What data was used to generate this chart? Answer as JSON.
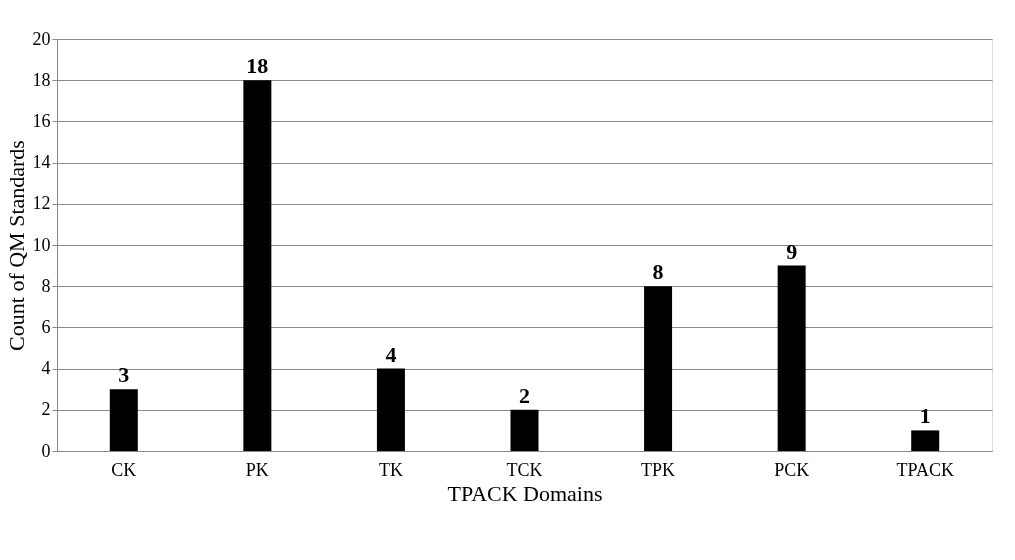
{
  "chart_data": {
    "type": "bar",
    "xlabel": "TPACK Domains",
    "ylabel": "Count of QM Standards",
    "categories": [
      "CK",
      "PK",
      "TK",
      "TCK",
      "TPK",
      "PCK",
      "TPACK"
    ],
    "values": [
      3,
      18,
      4,
      2,
      8,
      9,
      1
    ],
    "color": "#000000",
    "ylim": [
      0,
      20
    ],
    "yticks": [
      0,
      2,
      4,
      6,
      8,
      10,
      12,
      14,
      16,
      18,
      20
    ],
    "grid": "y",
    "data_labels": true
  }
}
